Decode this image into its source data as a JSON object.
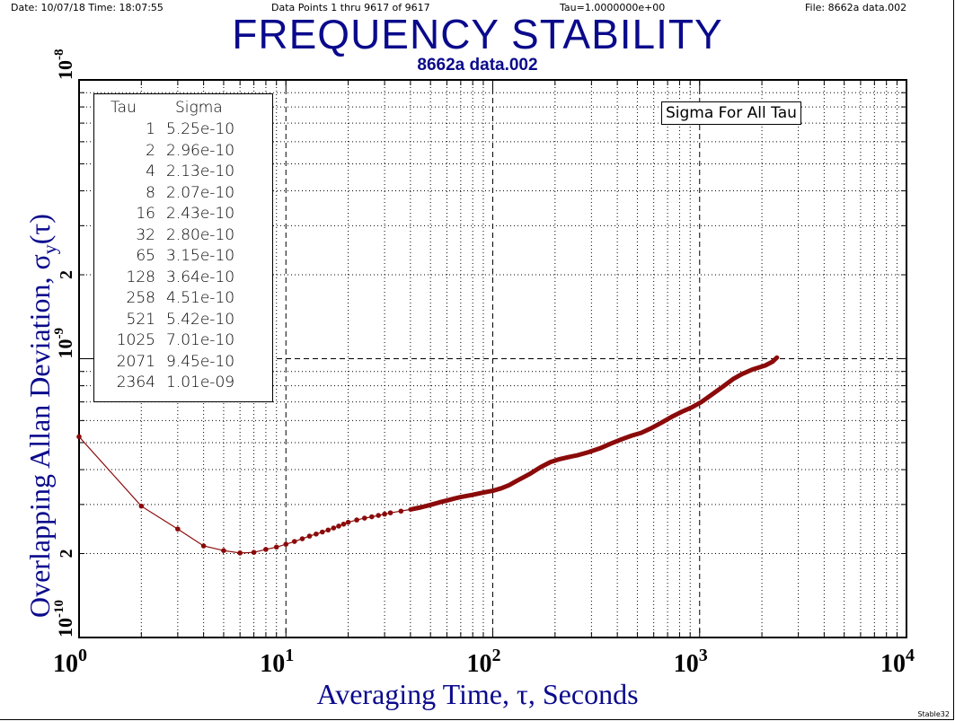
{
  "header": {
    "date_time": "Date: 10/07/18  Time: 18:07:55",
    "data_points": "Data Points 1 thru 9617 of 9617",
    "tau": "Tau=1.0000000e+00",
    "file": "File: 8662a data.002"
  },
  "footer": "Stable32",
  "colors": {
    "title": "#0a0a8c",
    "series": "#8b0a0a"
  },
  "chart_data": {
    "type": "line",
    "scale": "log-log",
    "title": "FREQUENCY STABILITY",
    "subtitle": "8662a data.002",
    "xlabel": "Averaging Time, τ, Seconds",
    "ylabel": "Overlapping Allan Deviation, σy(τ)",
    "xlim": [
      1,
      10000
    ],
    "ylim": [
      1e-10,
      1e-08
    ],
    "x_ticks": [
      {
        "value": 1,
        "base": "10",
        "exp": "0"
      },
      {
        "value": 10,
        "base": "10",
        "exp": "1"
      },
      {
        "value": 100,
        "base": "10",
        "exp": "2"
      },
      {
        "value": 1000,
        "base": "10",
        "exp": "3"
      },
      {
        "value": 10000,
        "base": "10",
        "exp": "4"
      }
    ],
    "y_ticks": [
      {
        "value": 1e-10,
        "label": "10",
        "exp": "-10"
      },
      {
        "value": 2e-10,
        "label": "2",
        "exp": ""
      },
      {
        "value": 1e-09,
        "label": "10",
        "exp": "-9"
      },
      {
        "value": 2e-09,
        "label": "2",
        "exp": ""
      },
      {
        "value": 1e-08,
        "label": "10",
        "exp": "-8"
      }
    ],
    "grid": true,
    "annotation": "Sigma For All Tau",
    "table": {
      "headers": [
        "Tau",
        "Sigma"
      ],
      "rows": [
        [
          "1",
          "5.25e-10"
        ],
        [
          "2",
          "2.96e-10"
        ],
        [
          "4",
          "2.13e-10"
        ],
        [
          "8",
          "2.07e-10"
        ],
        [
          "16",
          "2.43e-10"
        ],
        [
          "32",
          "2.80e-10"
        ],
        [
          "65",
          "3.15e-10"
        ],
        [
          "128",
          "3.64e-10"
        ],
        [
          "258",
          "4.51e-10"
        ],
        [
          "521",
          "5.42e-10"
        ],
        [
          "1025",
          "7.01e-10"
        ],
        [
          "2071",
          "9.45e-10"
        ],
        [
          "2364",
          "1.01e-09"
        ]
      ]
    },
    "series": [
      {
        "name": "Sigma For All Tau",
        "x": [
          1,
          2,
          3,
          4,
          5,
          6,
          7,
          8,
          9,
          10,
          11,
          12,
          13,
          14,
          15,
          16,
          17,
          18,
          19,
          20,
          22,
          24,
          26,
          28,
          30,
          32,
          36,
          40,
          45,
          50,
          55,
          60,
          65,
          70,
          80,
          90,
          100,
          110,
          120,
          130,
          150,
          170,
          190,
          210,
          230,
          258,
          290,
          330,
          370,
          420,
          470,
          521,
          580,
          650,
          730,
          820,
          920,
          1025,
          1150,
          1300,
          1450,
          1600,
          1800,
          2071,
          2250,
          2364
        ],
        "y": [
          5.25e-10,
          2.96e-10,
          2.45e-10,
          2.13e-10,
          2.05e-10,
          2.01e-10,
          2.02e-10,
          2.07e-10,
          2.11e-10,
          2.16e-10,
          2.21e-10,
          2.26e-10,
          2.31e-10,
          2.35e-10,
          2.39e-10,
          2.43e-10,
          2.47e-10,
          2.51e-10,
          2.55e-10,
          2.59e-10,
          2.64e-10,
          2.68e-10,
          2.71e-10,
          2.74e-10,
          2.77e-10,
          2.8e-10,
          2.84e-10,
          2.88e-10,
          2.93e-10,
          2.99e-10,
          3.05e-10,
          3.1e-10,
          3.15e-10,
          3.19e-10,
          3.25e-10,
          3.31e-10,
          3.36e-10,
          3.43e-10,
          3.52e-10,
          3.64e-10,
          3.85e-10,
          4.08e-10,
          4.26e-10,
          4.36e-10,
          4.43e-10,
          4.51e-10,
          4.62e-10,
          4.77e-10,
          4.95e-10,
          5.14e-10,
          5.3e-10,
          5.42e-10,
          5.62e-10,
          5.88e-10,
          6.18e-10,
          6.45e-10,
          6.7e-10,
          7.01e-10,
          7.45e-10,
          7.95e-10,
          8.45e-10,
          8.8e-10,
          9.15e-10,
          9.45e-10,
          9.75e-10,
          1.01e-09
        ]
      }
    ]
  }
}
